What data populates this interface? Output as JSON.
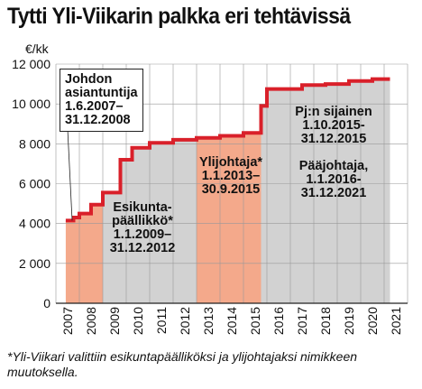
{
  "title": "Tytti Yli-Viikarin palkka eri tehtävissä",
  "unit_label": "€/kk",
  "footnote": "*Yli-Viikari valittiin esikuntapäälliköksi ja ylijohtajaksi nimikkeen muutoksella.",
  "colors": {
    "line": "#d9202a",
    "period_salmon": "#f4a98b",
    "period_gray": "#d2d2d2",
    "grid": "#999999"
  },
  "periods": [
    {
      "start": 2007.42,
      "end": 2009.0,
      "color": "salmon",
      "label": "Johdon\nasiantuntija\n1.6.2007–\n31.12.2008"
    },
    {
      "start": 2009.0,
      "end": 2013.0,
      "color": "gray",
      "label": "Esikunta-\npäällikkö*\n1.1.2009–\n31.12.2012"
    },
    {
      "start": 2013.0,
      "end": 2015.75,
      "color": "salmon",
      "label": "Ylijohtaja*\n1.1.2013–\n30.9.2015"
    },
    {
      "start": 2015.75,
      "end": 2021.25,
      "color": "gray",
      "label": "Pj:n sijainen\n1.10.2015-\n31.12.2015"
    },
    {
      "start": 2016.0,
      "end": 2021.25,
      "color": "gray",
      "label": "Pääjohtaja,\n1.1.2016-\n31.12.2021"
    }
  ],
  "chart_data": {
    "type": "line",
    "title": "Tytti Yli-Viikarin palkka eri tehtävissä",
    "ylabel": "€/kk",
    "xlabel": "",
    "ylim": [
      0,
      12000
    ],
    "xlim": [
      2007,
      2022
    ],
    "y_ticks": [
      "0",
      "2 000",
      "4 000",
      "6 000",
      "8 000",
      "10 000",
      "12 000"
    ],
    "y_tick_values": [
      0,
      2000,
      4000,
      6000,
      8000,
      10000,
      12000
    ],
    "x_ticks": [
      "2007",
      "2008",
      "2009",
      "2010",
      "2011",
      "2012",
      "2013",
      "2014",
      "2015",
      "2016",
      "2017",
      "2018",
      "2019",
      "2020",
      "2021"
    ],
    "grid": true,
    "series": [
      {
        "x": [
          2007.42,
          2007.75,
          2007.75,
          2008.0,
          2008.0,
          2008.5,
          2008.5,
          2009.0,
          2009.0,
          2009.75,
          2009.75,
          2010.25,
          2010.25,
          2011.0,
          2011.0,
          2012.0,
          2012.0,
          2013.0,
          2013.0,
          2014.0,
          2014.0,
          2015.0,
          2015.0,
          2015.75,
          2015.75,
          2016.0,
          2016.0,
          2017.5,
          2017.5,
          2018.5,
          2018.5,
          2019.5,
          2019.5,
          2020.5,
          2020.5,
          2021.25
        ],
        "values": [
          4150,
          4150,
          4300,
          4300,
          4500,
          4500,
          4950,
          4950,
          5550,
          5550,
          7200,
          7200,
          7800,
          7800,
          8050,
          8050,
          8200,
          8200,
          8300,
          8300,
          8400,
          8400,
          8550,
          8550,
          9900,
          9900,
          10750,
          10750,
          10950,
          10950,
          11000,
          11000,
          11150,
          11150,
          11250,
          11250
        ]
      }
    ]
  }
}
